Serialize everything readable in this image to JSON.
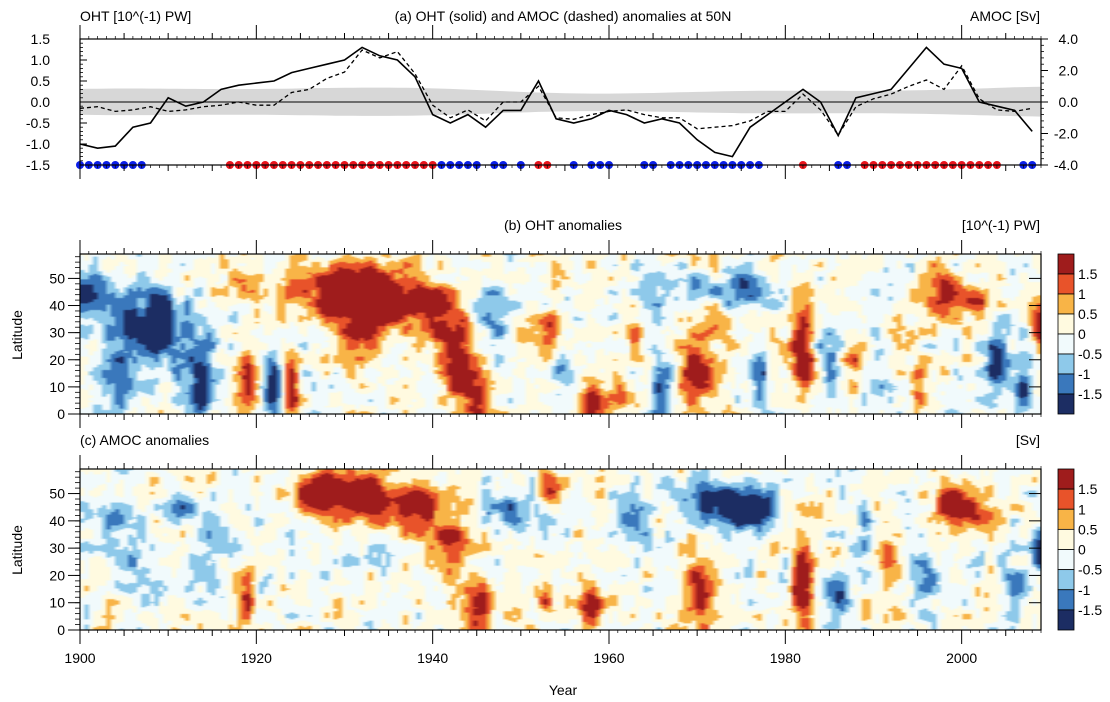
{
  "chart_data": [
    {
      "type": "line",
      "title": "(a) OHT (solid) and AMOC (dashed) anomalies at 50N",
      "ylabel_left": "OHT [10^(-1) PW]",
      "ylabel_right": "AMOC [Sv]",
      "xlim": [
        1900,
        2009
      ],
      "ylim_left": [
        -1.5,
        1.5
      ],
      "ylim_right": [
        -4.0,
        4.0
      ],
      "yticks_left": [
        "1.5",
        "1.0",
        "0.5",
        "0.0",
        "-0.5",
        "-1.0",
        "-1.5"
      ],
      "yticks_right": [
        "4.0",
        "2.0",
        "0.0",
        "-2.0",
        "-4.0"
      ],
      "x": [
        1900,
        1902,
        1904,
        1906,
        1908,
        1910,
        1912,
        1914,
        1916,
        1918,
        1920,
        1922,
        1924,
        1926,
        1928,
        1930,
        1932,
        1934,
        1936,
        1938,
        1940,
        1942,
        1944,
        1946,
        1948,
        1950,
        1952,
        1954,
        1956,
        1958,
        1960,
        1962,
        1964,
        1966,
        1968,
        1970,
        1972,
        1974,
        1976,
        1978,
        1980,
        1982,
        1984,
        1986,
        1988,
        1990,
        1992,
        1994,
        1996,
        1998,
        2000,
        2002,
        2004,
        2006,
        2008
      ],
      "series": [
        {
          "name": "OHT",
          "style": "solid",
          "axis": "left",
          "values": [
            -1.0,
            -1.1,
            -1.05,
            -0.6,
            -0.5,
            0.1,
            -0.1,
            0.0,
            0.3,
            0.4,
            0.45,
            0.5,
            0.7,
            0.8,
            0.9,
            1.0,
            1.3,
            1.1,
            1.0,
            0.6,
            -0.3,
            -0.5,
            -0.3,
            -0.6,
            -0.2,
            -0.2,
            0.5,
            -0.4,
            -0.5,
            -0.4,
            -0.2,
            -0.3,
            -0.5,
            -0.4,
            -0.5,
            -0.9,
            -1.2,
            -1.3,
            -0.6,
            -0.3,
            0.0,
            0.3,
            0.0,
            -0.8,
            0.1,
            0.2,
            0.3,
            0.8,
            1.3,
            0.9,
            0.8,
            0.0,
            -0.1,
            -0.2,
            -0.7
          ]
        },
        {
          "name": "AMOC",
          "style": "dashed",
          "axis": "right",
          "values": [
            -0.4,
            -0.3,
            -0.6,
            -0.5,
            -0.3,
            -0.6,
            -0.5,
            -0.3,
            -0.2,
            0.0,
            -0.2,
            -0.2,
            0.6,
            0.8,
            1.5,
            1.9,
            3.3,
            2.8,
            3.2,
            1.8,
            -0.2,
            -1.0,
            -0.5,
            -1.2,
            0.0,
            0.0,
            1.0,
            -1.0,
            -1.1,
            -0.8,
            -0.6,
            -0.5,
            -0.8,
            -1.0,
            -1.0,
            -1.7,
            -1.6,
            -1.5,
            -1.2,
            -0.6,
            -0.6,
            0.5,
            -0.5,
            -2.1,
            -0.3,
            0.2,
            0.5,
            1.0,
            1.4,
            0.8,
            2.3,
            0.2,
            -0.5,
            -0.6,
            -0.4
          ]
        }
      ],
      "reference_band": {
        "lower_left_units": -0.28,
        "upper_left_units": 0.28,
        "color": "#d7d7d7"
      },
      "dots": {
        "y": -1.5,
        "blue_years": [
          1900,
          1901,
          1902,
          1903,
          1904,
          1905,
          1906,
          1907,
          1941,
          1942,
          1943,
          1944,
          1945,
          1947,
          1948,
          1950,
          1956,
          1958,
          1959,
          1960,
          1964,
          1965,
          1967,
          1968,
          1969,
          1970,
          1971,
          1972,
          1973,
          1974,
          1975,
          1976,
          1977,
          1986,
          1987,
          2007,
          2008
        ],
        "red_years": [
          1917,
          1918,
          1919,
          1920,
          1921,
          1922,
          1923,
          1924,
          1925,
          1926,
          1927,
          1928,
          1929,
          1930,
          1931,
          1932,
          1933,
          1934,
          1935,
          1936,
          1937,
          1938,
          1939,
          1940,
          1952,
          1953,
          1982,
          1989,
          1990,
          1991,
          1992,
          1993,
          1994,
          1995,
          1996,
          1997,
          1998,
          1999,
          2000,
          2001,
          2002,
          2003,
          2004
        ],
        "blue_color": "#0b1fe8",
        "red_color": "#e8141c"
      }
    },
    {
      "type": "heatmap",
      "title": "(b) OHT anomalies",
      "units": "[10^(-1) PW]",
      "ylabel": "Latitude",
      "xlim": [
        1900,
        2009
      ],
      "ylim": [
        0,
        59
      ],
      "yticks": [
        "0",
        "10",
        "20",
        "30",
        "40",
        "50"
      ],
      "levels": [
        -1.5,
        -1,
        -0.5,
        0,
        0.5,
        1,
        1.5
      ],
      "colorbar_labels": [
        "1.5",
        "1",
        "0.5",
        "0",
        "-0.5",
        "-1",
        "-1.5"
      ],
      "features": [
        {
          "year": 1901,
          "lat": 42,
          "value": -2.0,
          "wyr": 3,
          "wlat": 8
        },
        {
          "year": 1906,
          "lat": 30,
          "value": -1.6,
          "wyr": 2.5,
          "wlat": 14
        },
        {
          "year": 1909,
          "lat": 35,
          "value": -1.8,
          "wyr": 2,
          "wlat": 12
        },
        {
          "year": 1904,
          "lat": 12,
          "value": -1.1,
          "wyr": 2.5,
          "wlat": 12
        },
        {
          "year": 1912,
          "lat": 25,
          "value": -1.2,
          "wyr": 3,
          "wlat": 15
        },
        {
          "year": 1914,
          "lat": 10,
          "value": -1.8,
          "wyr": 1.2,
          "wlat": 12
        },
        {
          "year": 1919,
          "lat": 10,
          "value": 2.0,
          "wyr": 1.0,
          "wlat": 12
        },
        {
          "year": 1922,
          "lat": 12,
          "value": -1.8,
          "wyr": 0.9,
          "wlat": 12
        },
        {
          "year": 1924,
          "lat": 10,
          "value": 2.0,
          "wyr": 0.9,
          "wlat": 12
        },
        {
          "year": 1918,
          "lat": 45,
          "value": 1.0,
          "wyr": 2,
          "wlat": 6
        },
        {
          "year": 1924,
          "lat": 46,
          "value": 0.9,
          "wyr": 2,
          "wlat": 8
        },
        {
          "year": 1929,
          "lat": 44,
          "value": 2.0,
          "wyr": 3.5,
          "wlat": 9
        },
        {
          "year": 1933,
          "lat": 46,
          "value": 2.2,
          "wyr": 4,
          "wlat": 9
        },
        {
          "year": 1932,
          "lat": 30,
          "value": 1.7,
          "wyr": 2.5,
          "wlat": 11
        },
        {
          "year": 1937,
          "lat": 40,
          "value": 1.6,
          "wyr": 3,
          "wlat": 9
        },
        {
          "year": 1941,
          "lat": 35,
          "value": 1.6,
          "wyr": 2.5,
          "wlat": 12
        },
        {
          "year": 1943,
          "lat": 18,
          "value": 1.8,
          "wyr": 2.0,
          "wlat": 14
        },
        {
          "year": 1945,
          "lat": 5,
          "value": 1.8,
          "wyr": 1.5,
          "wlat": 8
        },
        {
          "year": 1947,
          "lat": 35,
          "value": -1.0,
          "wyr": 2,
          "wlat": 12
        },
        {
          "year": 1950,
          "lat": 25,
          "value": 0.9,
          "wyr": 1.0,
          "wlat": 8
        },
        {
          "year": 1953,
          "lat": 30,
          "value": 1.2,
          "wyr": 1.0,
          "wlat": 8
        },
        {
          "year": 1955,
          "lat": 15,
          "value": -1.0,
          "wyr": 1.5,
          "wlat": 10
        },
        {
          "year": 1958,
          "lat": 6,
          "value": 1.8,
          "wyr": 1.5,
          "wlat": 8
        },
        {
          "year": 1961,
          "lat": 10,
          "value": 1.2,
          "wyr": 1.2,
          "wlat": 10
        },
        {
          "year": 1963,
          "lat": 30,
          "value": 0.9,
          "wyr": 1,
          "wlat": 8
        },
        {
          "year": 1966,
          "lat": 10,
          "value": -1.3,
          "wyr": 1.2,
          "wlat": 14
        },
        {
          "year": 1970,
          "lat": 16,
          "value": 2.2,
          "wyr": 1.8,
          "wlat": 12
        },
        {
          "year": 1967,
          "lat": 45,
          "value": -0.8,
          "wyr": 4,
          "wlat": 8
        },
        {
          "year": 1972,
          "lat": 36,
          "value": 0.9,
          "wyr": 1.5,
          "wlat": 6
        },
        {
          "year": 1975,
          "lat": 45,
          "value": -1.6,
          "wyr": 3.5,
          "wlat": 6
        },
        {
          "year": 1977,
          "lat": 12,
          "value": -1.3,
          "wyr": 1.2,
          "wlat": 10
        },
        {
          "year": 1982,
          "lat": 22,
          "value": 2.2,
          "wyr": 1.2,
          "wlat": 16
        },
        {
          "year": 1985,
          "lat": 25,
          "value": -1.1,
          "wyr": 1.5,
          "wlat": 14
        },
        {
          "year": 1988,
          "lat": 20,
          "value": 0.9,
          "wyr": 1.5,
          "wlat": 10
        },
        {
          "year": 1991,
          "lat": 18,
          "value": -1.0,
          "wyr": 1.2,
          "wlat": 10
        },
        {
          "year": 1995,
          "lat": 8,
          "value": 1.3,
          "wyr": 1.0,
          "wlat": 10
        },
        {
          "year": 1998,
          "lat": 45,
          "value": 1.7,
          "wyr": 2.5,
          "wlat": 8
        },
        {
          "year": 2002,
          "lat": 42,
          "value": 1.4,
          "wyr": 2,
          "wlat": 5
        },
        {
          "year": 2004,
          "lat": 20,
          "value": -1.6,
          "wyr": 1.2,
          "wlat": 10
        },
        {
          "year": 2007,
          "lat": 8,
          "value": -1.8,
          "wyr": 1.0,
          "wlat": 10
        },
        {
          "year": 2009,
          "lat": 30,
          "value": 1.5,
          "wyr": 1.0,
          "wlat": 12
        }
      ]
    },
    {
      "type": "heatmap",
      "title": "(c) AMOC anomalies",
      "units": "[Sv]",
      "ylabel": "Latitude",
      "xlim": [
        1900,
        2009
      ],
      "ylim": [
        0,
        59
      ],
      "yticks": [
        "0",
        "10",
        "20",
        "30",
        "40",
        "50"
      ],
      "levels": [
        -1.5,
        -1,
        -0.5,
        0,
        0.5,
        1,
        1.5
      ],
      "colorbar_labels": [
        "1.5",
        "1",
        "0.5",
        "0",
        "-0.5",
        "-1",
        "-1.5"
      ],
      "features": [
        {
          "year": 1903,
          "lat": 42,
          "value": -0.9,
          "wyr": 3,
          "wlat": 6
        },
        {
          "year": 1905,
          "lat": 25,
          "value": -0.7,
          "wyr": 3,
          "wlat": 12
        },
        {
          "year": 1912,
          "lat": 45,
          "value": -1.1,
          "wyr": 2,
          "wlat": 5
        },
        {
          "year": 1919,
          "lat": 12,
          "value": 1.8,
          "wyr": 0.9,
          "wlat": 10
        },
        {
          "year": 1914,
          "lat": 30,
          "value": -0.8,
          "wyr": 2,
          "wlat": 10
        },
        {
          "year": 1927,
          "lat": 50,
          "value": 1.8,
          "wyr": 3,
          "wlat": 8
        },
        {
          "year": 1932,
          "lat": 50,
          "value": 2.2,
          "wyr": 4,
          "wlat": 9
        },
        {
          "year": 1938,
          "lat": 45,
          "value": 2.0,
          "wyr": 3,
          "wlat": 8
        },
        {
          "year": 1942,
          "lat": 32,
          "value": 1.7,
          "wyr": 2,
          "wlat": 12
        },
        {
          "year": 1945,
          "lat": 10,
          "value": 2.0,
          "wyr": 1.5,
          "wlat": 10
        },
        {
          "year": 1949,
          "lat": 45,
          "value": -1.1,
          "wyr": 2.5,
          "wlat": 8
        },
        {
          "year": 1953,
          "lat": 52,
          "value": 1.4,
          "wyr": 1.2,
          "wlat": 6
        },
        {
          "year": 1953,
          "lat": 12,
          "value": 1.3,
          "wyr": 1.2,
          "wlat": 8
        },
        {
          "year": 1958,
          "lat": 8,
          "value": 2.0,
          "wyr": 1.3,
          "wlat": 10
        },
        {
          "year": 1963,
          "lat": 40,
          "value": -0.9,
          "wyr": 2,
          "wlat": 10
        },
        {
          "year": 1970,
          "lat": 12,
          "value": 2.0,
          "wyr": 1.5,
          "wlat": 14
        },
        {
          "year": 1973,
          "lat": 46,
          "value": -2.2,
          "wyr": 4,
          "wlat": 8
        },
        {
          "year": 1977,
          "lat": 43,
          "value": -1.9,
          "wyr": 2.5,
          "wlat": 7
        },
        {
          "year": 1982,
          "lat": 18,
          "value": 2.0,
          "wyr": 1.2,
          "wlat": 18
        },
        {
          "year": 1986,
          "lat": 10,
          "value": -1.3,
          "wyr": 1.5,
          "wlat": 10
        },
        {
          "year": 1989,
          "lat": 30,
          "value": -0.9,
          "wyr": 1.5,
          "wlat": 12
        },
        {
          "year": 1992,
          "lat": 25,
          "value": 1.1,
          "wyr": 1.5,
          "wlat": 12
        },
        {
          "year": 1996,
          "lat": 20,
          "value": -1.1,
          "wyr": 1.5,
          "wlat": 14
        },
        {
          "year": 1999,
          "lat": 45,
          "value": 2.1,
          "wyr": 2.5,
          "wlat": 8
        },
        {
          "year": 2002,
          "lat": 42,
          "value": 1.3,
          "wyr": 2,
          "wlat": 5
        },
        {
          "year": 2006,
          "lat": 15,
          "value": -1.0,
          "wyr": 1.5,
          "wlat": 10
        },
        {
          "year": 2009,
          "lat": 30,
          "value": -1.6,
          "wyr": 1.0,
          "wlat": 10
        }
      ]
    }
  ],
  "shared_axis": {
    "xlabel": "Year",
    "xticks": [
      "1900",
      "1920",
      "1940",
      "1960",
      "1980",
      "2000"
    ]
  },
  "palette": {
    "colors": [
      "#1c2d63",
      "#3a78bc",
      "#8ec9ea",
      "#f1fafc",
      "#fffae0",
      "#f8b447",
      "#e8532a",
      "#9f1c1c"
    ],
    "zero_line": "#000000"
  }
}
